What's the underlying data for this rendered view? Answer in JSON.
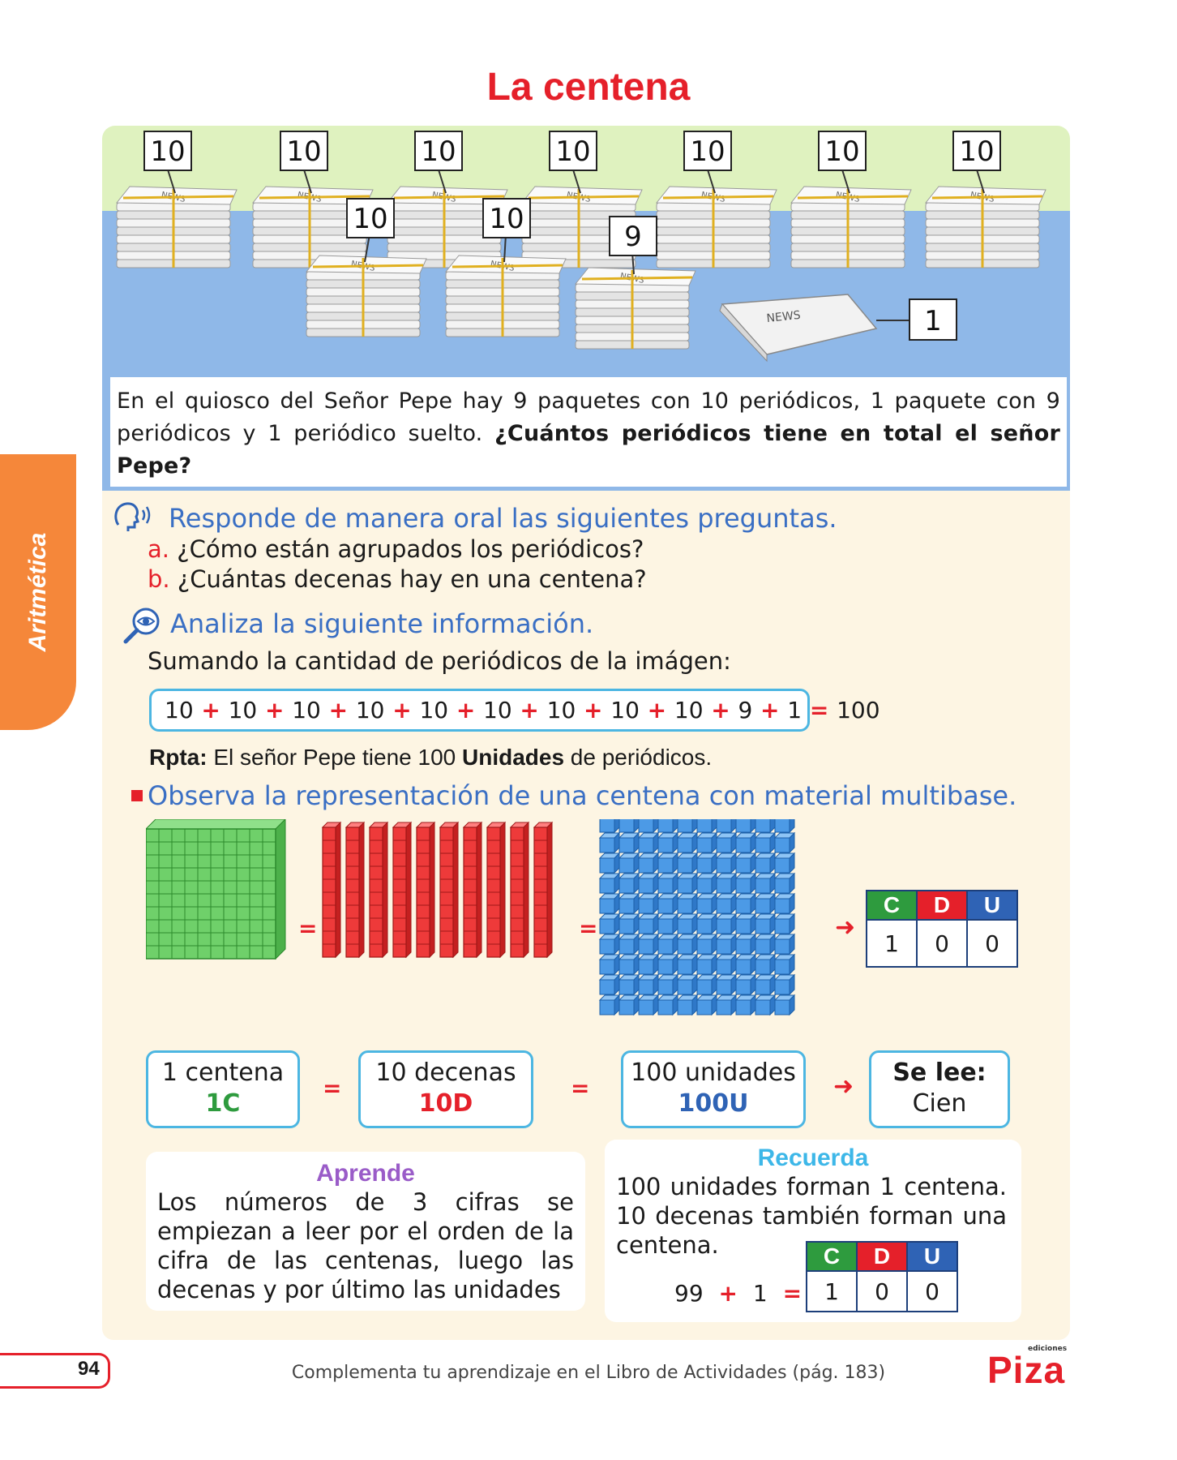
{
  "title": "La centena",
  "side_tab": "Aritmética",
  "illustration": {
    "bundle_labels": [
      "10",
      "10",
      "10",
      "10",
      "10",
      "10",
      "10",
      "10",
      "10",
      "9",
      "1"
    ],
    "paper_text": "NEWS"
  },
  "problem": {
    "text": "En el quiosco del Señor Pepe hay 9 paquetes con 10 periódicos, 1 paquete con 9 periódicos y 1 periódico suelto. ",
    "question": "¿Cuántos periódicos tiene en total el señor Pepe?"
  },
  "section_oral": {
    "heading": "Responde de manera oral las siguientes preguntas.",
    "items": [
      {
        "letter": "a.",
        "text": "¿Cómo están agrupados los periódicos?"
      },
      {
        "letter": "b.",
        "text": "¿Cuántas decenas hay en una centena?"
      }
    ]
  },
  "section_analyze": {
    "heading": "Analiza la siguiente información.",
    "intro": "Sumando la cantidad de periódicos de la imágen:",
    "sum_terms": [
      "10",
      "10",
      "10",
      "10",
      "10",
      "10",
      "10",
      "10",
      "10",
      "9",
      "1"
    ],
    "plus": "+",
    "equals": "=",
    "sum_result": "100"
  },
  "answer": {
    "label": "Rpta:",
    "before": " El señor Pepe tiene 100 ",
    "bold": "Unidades",
    "after": " de periódicos."
  },
  "section_observe": {
    "heading": "Observa la representación de una centena con material multibase."
  },
  "place_value": {
    "headers": [
      "C",
      "D",
      "U"
    ],
    "values": [
      "1",
      "0",
      "0"
    ],
    "header_colors": [
      "#2e9b3e",
      "#e5202a",
      "#2f63b5"
    ]
  },
  "equivalences": [
    {
      "text": "1 centena",
      "code": "1C",
      "color": "#2e9b3e"
    },
    {
      "text": "10 decenas",
      "code": "10D",
      "color": "#e5202a"
    },
    {
      "text": "100 unidades",
      "code": "100U",
      "color": "#2f63b5"
    }
  ],
  "reads": {
    "label": "Se lee:",
    "value": "Cien"
  },
  "eq_sign": "=",
  "aprende": {
    "title": "Aprende",
    "text": "Los números de 3 cifras se empiezan a leer por el orden de la cifra de las centenas, luego las decenas y por último las unidades",
    "title_color": "#9a5cc8"
  },
  "recuerda": {
    "title": "Recuerda",
    "text": "100 unidades forman 1 centena. 10 decenas también forman una centena.",
    "equation": [
      "99",
      "+",
      "1",
      "="
    ],
    "headers": [
      "C",
      "D",
      "U"
    ],
    "values": [
      "1",
      "0",
      "0"
    ],
    "title_color": "#3db7e8"
  },
  "footer": {
    "page": "94",
    "text": "Complementa tu aprendizaje en el Libro de Actividades (pág. 183)",
    "logo": "Piza",
    "logo_small": "ediciones"
  }
}
